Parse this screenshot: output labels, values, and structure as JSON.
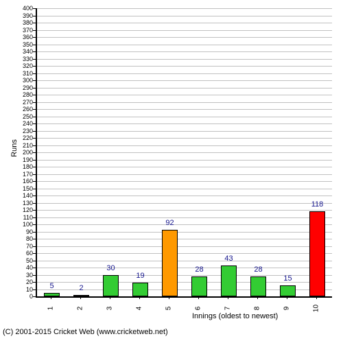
{
  "chart": {
    "type": "bar",
    "ylabel": "Runs",
    "xlabel": "Innings (oldest to newest)",
    "ylim": [
      0,
      400
    ],
    "ytick_step": 10,
    "background_color": "#ffffff",
    "grid_color": "#c0c0c0",
    "axis_color": "#000000",
    "label_color": "#14148c",
    "tick_fontsize": 9,
    "label_fontsize": 11,
    "bar_width_ratio": 0.55,
    "categories": [
      "1",
      "2",
      "3",
      "4",
      "5",
      "6",
      "7",
      "8",
      "9",
      "10"
    ],
    "values": [
      5,
      2,
      30,
      19,
      92,
      28,
      43,
      28,
      15,
      118
    ],
    "bar_colors": [
      "#33cc33",
      "#33cc33",
      "#33cc33",
      "#33cc33",
      "#ff9900",
      "#33cc33",
      "#33cc33",
      "#33cc33",
      "#33cc33",
      "#ff0000"
    ],
    "copyright": "(C) 2001-2015 Cricket Web (www.cricketweb.net)"
  }
}
